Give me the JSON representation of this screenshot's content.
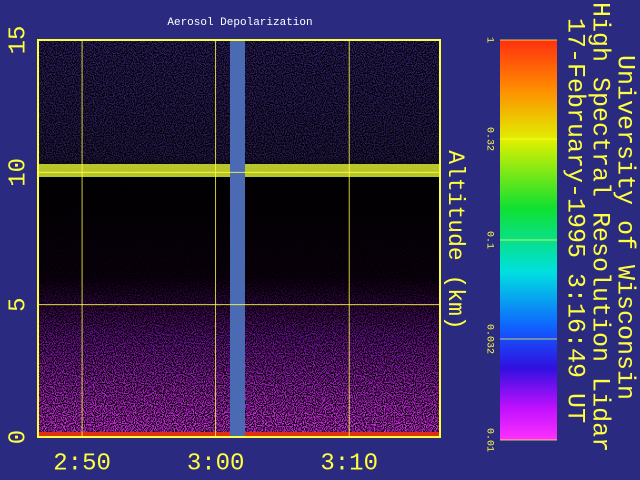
{
  "chart_data": {
    "type": "image",
    "title": "Aerosol Depolarization",
    "ylabel": "Altitude (km)",
    "annotations": [
      "University of Wisconsin",
      "High Spectral Resolution Lidar",
      "17-February-1995   3:16:49 UT"
    ],
    "xlim": [
      166.7,
      196.8
    ],
    "xticks": [
      {
        "value": 170,
        "label": "2:50"
      },
      {
        "value": 180,
        "label": "3:00"
      },
      {
        "value": 190,
        "label": "3:10"
      }
    ],
    "ylim": [
      0,
      15
    ],
    "yticks": [
      0,
      5,
      10,
      15
    ],
    "colorbar": {
      "lim": [
        0.01,
        1
      ],
      "log": true,
      "ticks": [
        1,
        0.32,
        0.1,
        0.032,
        0.01
      ]
    },
    "grid": true
  }
}
